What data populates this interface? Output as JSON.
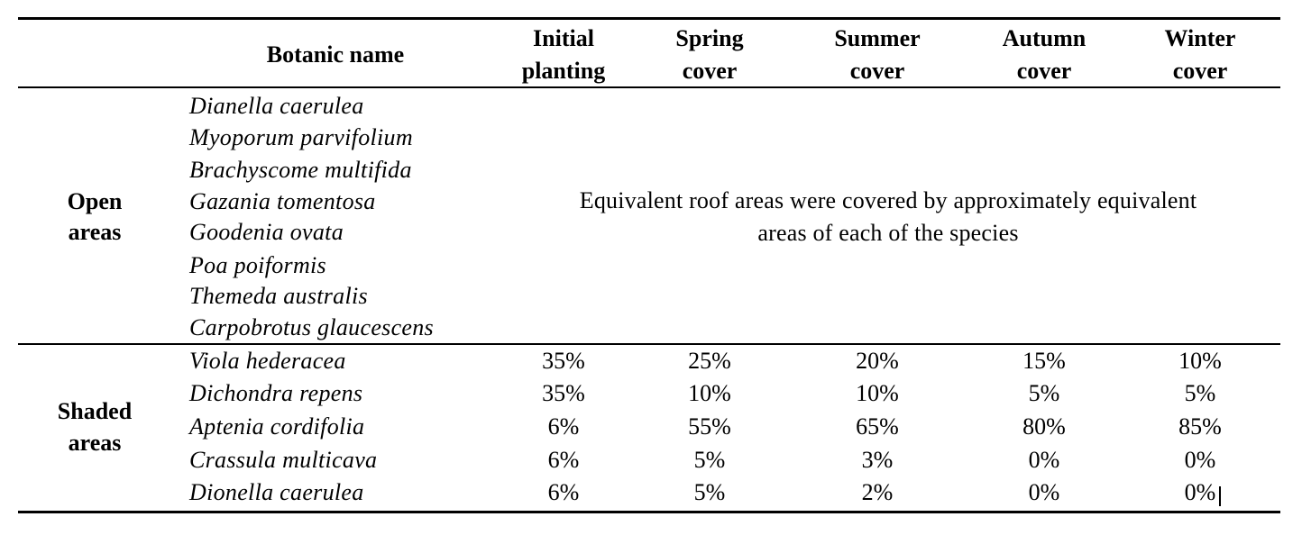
{
  "table": {
    "columns": {
      "botanic": "Botanic name",
      "initial": [
        "Initial",
        "planting"
      ],
      "spring": [
        "Spring",
        "cover"
      ],
      "summer": [
        "Summer",
        "cover"
      ],
      "autumn": [
        "Autumn",
        "cover"
      ],
      "winter": [
        "Winter",
        "cover"
      ]
    },
    "open": {
      "label": [
        "Open",
        "areas"
      ],
      "species": [
        "Dianella caerulea",
        "Myoporum parvifolium",
        "Brachyscome multifida",
        "Gazania tomentosa",
        "Goodenia ovata",
        "Poa poiformis",
        "Themeda australis",
        "Carpobrotus glaucescens"
      ],
      "note": [
        "Equivalent roof areas were covered by approximately equivalent",
        "areas of each of the species"
      ]
    },
    "shaded": {
      "label": [
        "Shaded",
        "areas"
      ],
      "rows": [
        {
          "name": "Viola hederacea",
          "initial": "35%",
          "spring": "25%",
          "summer": "20%",
          "autumn": "15%",
          "winter": "10%"
        },
        {
          "name": "Dichondra repens",
          "initial": "35%",
          "spring": "10%",
          "summer": "10%",
          "autumn": "5%",
          "winter": "5%"
        },
        {
          "name": "Aptenia cordifolia",
          "initial": "6%",
          "spring": "55%",
          "summer": "65%",
          "autumn": "80%",
          "winter": "85%"
        },
        {
          "name": "Crassula multicava",
          "initial": "6%",
          "spring": "5%",
          "summer": "3%",
          "autumn": "0%",
          "winter": "0%"
        },
        {
          "name": "Dionella caerulea",
          "initial": "6%",
          "spring": "5%",
          "summer": "2%",
          "autumn": "0%",
          "winter": "0%"
        }
      ]
    }
  }
}
